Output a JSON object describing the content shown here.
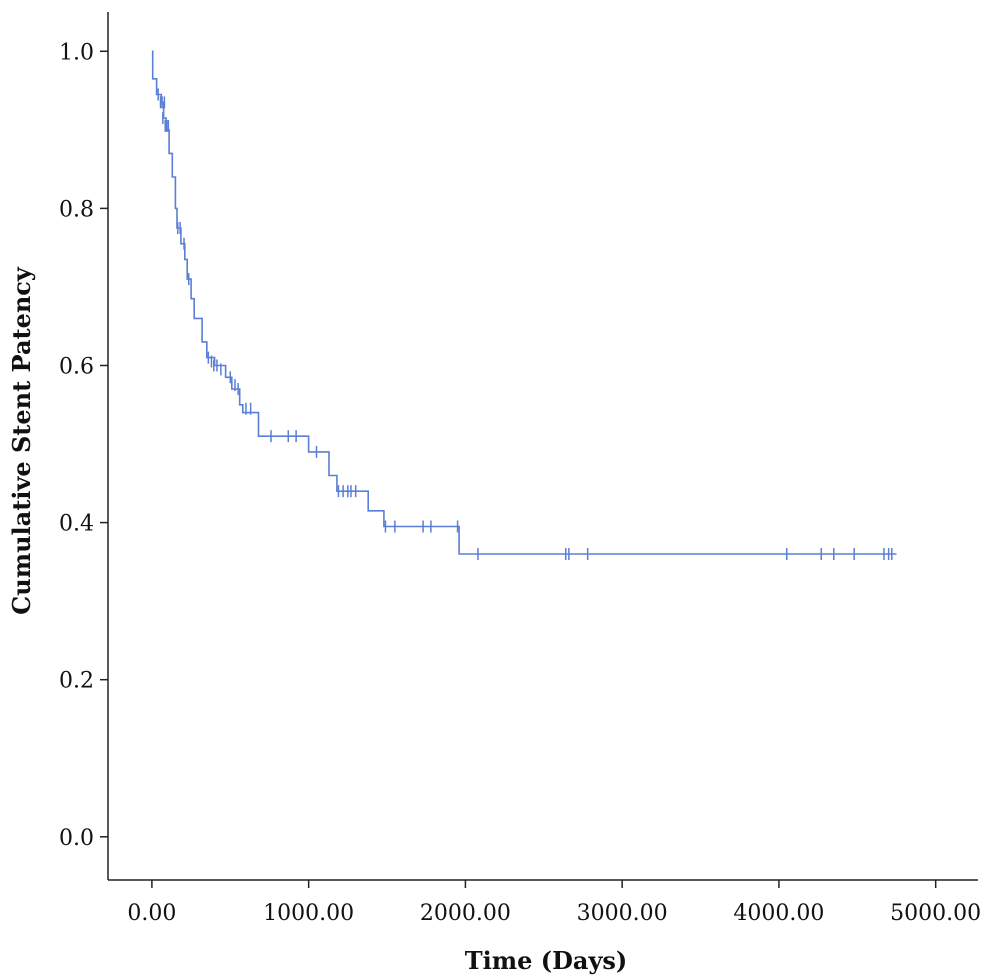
{
  "chart_data": {
    "type": "line",
    "subtype": "kaplan-meier-step",
    "title": "",
    "xlabel": "Time (Days)",
    "ylabel": "Cumulative Stent Patency",
    "xlim": [
      -280,
      5270
    ],
    "ylim": [
      -0.055,
      1.05
    ],
    "x_ticks": [
      0,
      1000,
      2000,
      3000,
      4000,
      5000
    ],
    "x_tick_labels": [
      "0.00",
      "1000.00",
      "2000.00",
      "3000.00",
      "4000.00",
      "5000.00"
    ],
    "y_ticks": [
      0.0,
      0.2,
      0.4,
      0.6,
      0.8,
      1.0
    ],
    "y_tick_labels": [
      "0.0",
      "0.2",
      "0.4",
      "0.6",
      "0.8",
      "1.0"
    ],
    "grid": false,
    "legend": "none",
    "line_color": "#5b7fd4",
    "series": [
      {
        "step_points": [
          {
            "x": 0,
            "y": 1.0
          },
          {
            "x": 5,
            "y": 0.965
          },
          {
            "x": 30,
            "y": 0.945
          },
          {
            "x": 60,
            "y": 0.935
          },
          {
            "x": 75,
            "y": 0.915
          },
          {
            "x": 90,
            "y": 0.9
          },
          {
            "x": 110,
            "y": 0.87
          },
          {
            "x": 130,
            "y": 0.84
          },
          {
            "x": 150,
            "y": 0.8
          },
          {
            "x": 160,
            "y": 0.775
          },
          {
            "x": 185,
            "y": 0.755
          },
          {
            "x": 210,
            "y": 0.735
          },
          {
            "x": 225,
            "y": 0.71
          },
          {
            "x": 250,
            "y": 0.685
          },
          {
            "x": 270,
            "y": 0.66
          },
          {
            "x": 320,
            "y": 0.63
          },
          {
            "x": 350,
            "y": 0.61
          },
          {
            "x": 400,
            "y": 0.6
          },
          {
            "x": 470,
            "y": 0.585
          },
          {
            "x": 510,
            "y": 0.57
          },
          {
            "x": 560,
            "y": 0.55
          },
          {
            "x": 580,
            "y": 0.54
          },
          {
            "x": 680,
            "y": 0.51
          },
          {
            "x": 1000,
            "y": 0.49
          },
          {
            "x": 1130,
            "y": 0.46
          },
          {
            "x": 1180,
            "y": 0.44
          },
          {
            "x": 1380,
            "y": 0.415
          },
          {
            "x": 1480,
            "y": 0.395
          },
          {
            "x": 1960,
            "y": 0.36
          },
          {
            "x": 4750,
            "y": 0.36
          }
        ],
        "censored": [
          {
            "x": 40,
            "y": 0.945
          },
          {
            "x": 55,
            "y": 0.935
          },
          {
            "x": 65,
            "y": 0.935
          },
          {
            "x": 80,
            "y": 0.935
          },
          {
            "x": 70,
            "y": 0.915
          },
          {
            "x": 85,
            "y": 0.905
          },
          {
            "x": 95,
            "y": 0.905
          },
          {
            "x": 105,
            "y": 0.905
          },
          {
            "x": 165,
            "y": 0.775
          },
          {
            "x": 180,
            "y": 0.775
          },
          {
            "x": 205,
            "y": 0.755
          },
          {
            "x": 235,
            "y": 0.71
          },
          {
            "x": 360,
            "y": 0.61
          },
          {
            "x": 380,
            "y": 0.605
          },
          {
            "x": 395,
            "y": 0.6
          },
          {
            "x": 415,
            "y": 0.6
          },
          {
            "x": 440,
            "y": 0.595
          },
          {
            "x": 500,
            "y": 0.585
          },
          {
            "x": 530,
            "y": 0.575
          },
          {
            "x": 550,
            "y": 0.57
          },
          {
            "x": 600,
            "y": 0.545
          },
          {
            "x": 630,
            "y": 0.545
          },
          {
            "x": 760,
            "y": 0.51
          },
          {
            "x": 870,
            "y": 0.51
          },
          {
            "x": 920,
            "y": 0.51
          },
          {
            "x": 1050,
            "y": 0.49
          },
          {
            "x": 1190,
            "y": 0.44
          },
          {
            "x": 1220,
            "y": 0.44
          },
          {
            "x": 1250,
            "y": 0.44
          },
          {
            "x": 1270,
            "y": 0.44
          },
          {
            "x": 1300,
            "y": 0.44
          },
          {
            "x": 1490,
            "y": 0.395
          },
          {
            "x": 1550,
            "y": 0.395
          },
          {
            "x": 1730,
            "y": 0.395
          },
          {
            "x": 1780,
            "y": 0.395
          },
          {
            "x": 1950,
            "y": 0.395
          },
          {
            "x": 2080,
            "y": 0.36
          },
          {
            "x": 2640,
            "y": 0.36
          },
          {
            "x": 2660,
            "y": 0.36
          },
          {
            "x": 2780,
            "y": 0.36
          },
          {
            "x": 4050,
            "y": 0.36
          },
          {
            "x": 4270,
            "y": 0.36
          },
          {
            "x": 4350,
            "y": 0.36
          },
          {
            "x": 4480,
            "y": 0.36
          },
          {
            "x": 4670,
            "y": 0.36
          },
          {
            "x": 4700,
            "y": 0.36
          },
          {
            "x": 4720,
            "y": 0.36
          }
        ]
      }
    ]
  }
}
